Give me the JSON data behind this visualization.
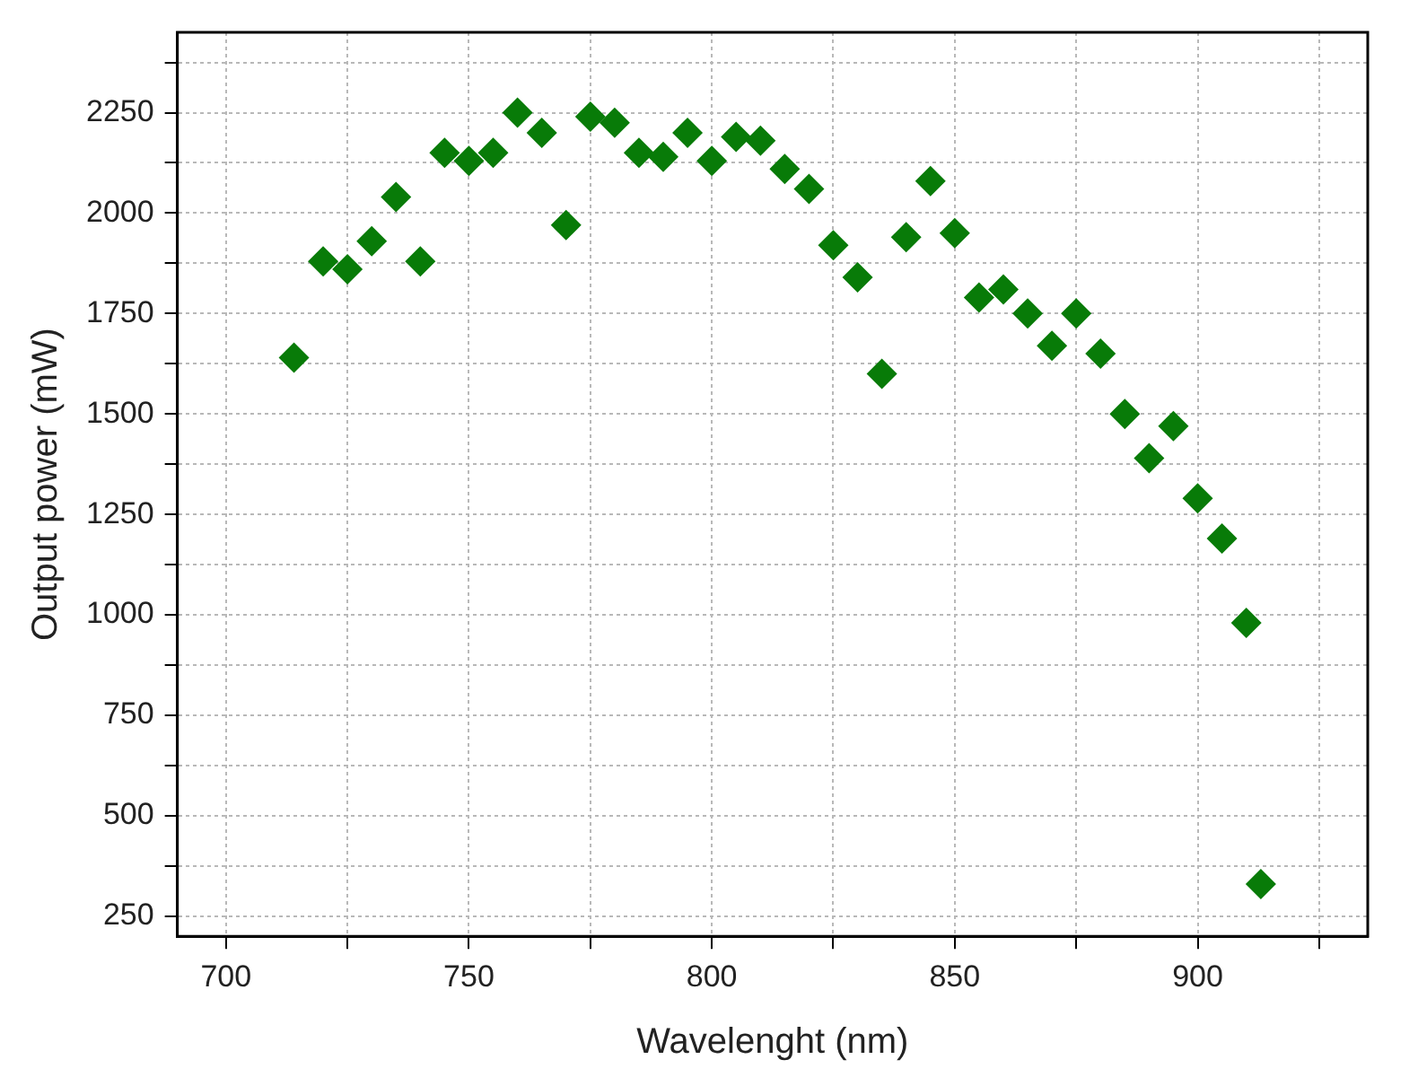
{
  "chart_data": {
    "type": "scatter",
    "xlabel": "Wavelenght (nm)",
    "ylabel": "Output power (mW)",
    "x": [
      714,
      720,
      725,
      730,
      735,
      740,
      745,
      750,
      755,
      760,
      765,
      770,
      775,
      780,
      785,
      790,
      795,
      800,
      805,
      810,
      815,
      820,
      825,
      830,
      835,
      840,
      845,
      850,
      855,
      860,
      865,
      870,
      875,
      880,
      885,
      890,
      895,
      900,
      905,
      910,
      913
    ],
    "series": [
      {
        "color": "#087b08",
        "values": [
          1640,
          1880,
          1860,
          1930,
          2040,
          1880,
          2150,
          2130,
          2150,
          2250,
          2200,
          1970,
          2240,
          2225,
          2150,
          2140,
          2200,
          2130,
          2190,
          2180,
          2110,
          2060,
          1920,
          1840,
          1600,
          1940,
          2080,
          1950,
          1790,
          1810,
          1750,
          1670,
          1750,
          1650,
          1500,
          1390,
          1470,
          1290,
          1190,
          980,
          330
        ]
      }
    ],
    "xlim": [
      690,
      935
    ],
    "xticks": [
      700,
      {
        "value": 725,
        "label": null
      },
      750,
      {
        "value": 775,
        "label": null
      },
      800,
      {
        "value": 825,
        "label": null
      },
      850,
      {
        "value": 875,
        "label": null
      },
      900,
      {
        "value": 925,
        "label": null
      }
    ],
    "ylim": [
      200,
      2450
    ],
    "yticks": [
      250,
      {
        "value": 375,
        "label": null
      },
      500,
      {
        "value": 625,
        "label": null
      },
      750,
      {
        "value": 875,
        "label": null
      },
      1000,
      {
        "value": 1125,
        "label": null
      },
      1250,
      {
        "value": 1375,
        "label": null
      },
      1500,
      {
        "value": 1625,
        "label": null
      },
      1750,
      {
        "value": 1875,
        "label": null
      },
      2000,
      {
        "value": 2125,
        "label": null
      },
      2250,
      {
        "value": 2375,
        "label": null
      }
    ],
    "grid": true,
    "marker": "diamond",
    "legend": false
  }
}
